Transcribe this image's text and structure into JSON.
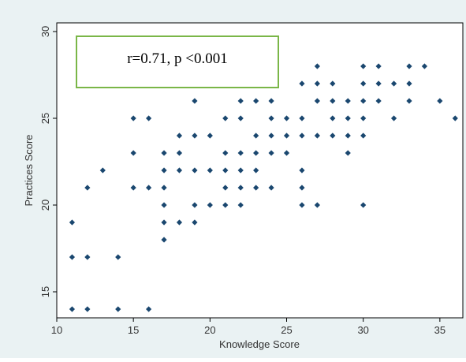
{
  "chart_data": {
    "type": "scatter",
    "xlabel": "Knowledge Score",
    "ylabel": "Practices Score",
    "xlim": [
      10,
      36.5
    ],
    "ylim": [
      13.5,
      30.5
    ],
    "xticks": [
      10,
      15,
      20,
      25,
      30,
      35
    ],
    "yticks": [
      15,
      20,
      25,
      30
    ],
    "annotation": "r=0.71, p <0.001",
    "marker_color": "#1a476f",
    "points": [
      [
        11,
        19
      ],
      [
        11,
        17
      ],
      [
        11,
        14
      ],
      [
        12,
        21
      ],
      [
        12,
        17
      ],
      [
        12,
        14
      ],
      [
        13,
        22
      ],
      [
        14,
        17
      ],
      [
        14,
        14
      ],
      [
        15,
        25
      ],
      [
        15,
        23
      ],
      [
        15,
        21
      ],
      [
        16,
        25
      ],
      [
        16,
        21
      ],
      [
        16,
        14
      ],
      [
        17,
        23
      ],
      [
        17,
        22
      ],
      [
        17,
        21
      ],
      [
        17,
        20
      ],
      [
        17,
        19
      ],
      [
        17,
        18
      ],
      [
        18,
        24
      ],
      [
        18,
        23
      ],
      [
        18,
        22
      ],
      [
        18,
        19
      ],
      [
        19,
        26
      ],
      [
        19,
        24
      ],
      [
        19,
        22
      ],
      [
        19,
        20
      ],
      [
        19,
        19
      ],
      [
        20,
        24
      ],
      [
        20,
        22
      ],
      [
        20,
        20
      ],
      [
        21,
        25
      ],
      [
        21,
        23
      ],
      [
        21,
        22
      ],
      [
        21,
        21
      ],
      [
        21,
        20
      ],
      [
        22,
        26
      ],
      [
        22,
        25
      ],
      [
        22,
        23
      ],
      [
        22,
        22
      ],
      [
        22,
        21
      ],
      [
        22,
        20
      ],
      [
        23,
        26
      ],
      [
        23,
        24
      ],
      [
        23,
        23
      ],
      [
        23,
        22
      ],
      [
        23,
        21
      ],
      [
        24,
        26
      ],
      [
        24,
        25
      ],
      [
        24,
        24
      ],
      [
        24,
        23
      ],
      [
        24,
        21
      ],
      [
        25,
        25
      ],
      [
        25,
        24
      ],
      [
        25,
        23
      ],
      [
        26,
        27
      ],
      [
        26,
        25
      ],
      [
        26,
        24
      ],
      [
        26,
        22
      ],
      [
        26,
        21
      ],
      [
        26,
        20
      ],
      [
        27,
        28
      ],
      [
        27,
        27
      ],
      [
        27,
        26
      ],
      [
        27,
        24
      ],
      [
        27,
        20
      ],
      [
        28,
        27
      ],
      [
        28,
        26
      ],
      [
        28,
        25
      ],
      [
        28,
        24
      ],
      [
        29,
        26
      ],
      [
        29,
        25
      ],
      [
        29,
        24
      ],
      [
        29,
        23
      ],
      [
        30,
        28
      ],
      [
        30,
        27
      ],
      [
        30,
        26
      ],
      [
        30,
        25
      ],
      [
        30,
        24
      ],
      [
        30,
        20
      ],
      [
        31,
        28
      ],
      [
        31,
        27
      ],
      [
        31,
        26
      ],
      [
        32,
        27
      ],
      [
        32,
        25
      ],
      [
        33,
        28
      ],
      [
        33,
        27
      ],
      [
        33,
        26
      ],
      [
        34,
        28
      ],
      [
        35,
        26
      ],
      [
        36,
        25
      ]
    ]
  }
}
